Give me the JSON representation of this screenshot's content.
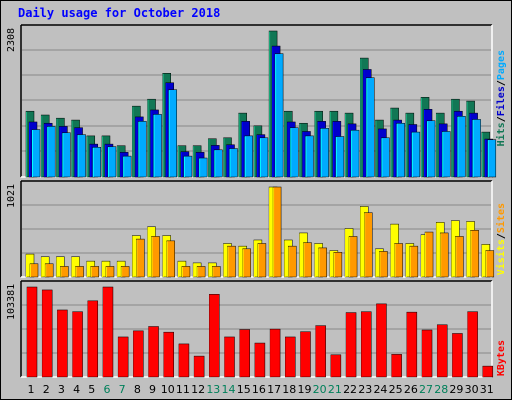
{
  "chart_data": [
    {
      "type": "bar",
      "title": "Daily usage for October 2018",
      "ytick": "2308",
      "legend": [
        {
          "label": "Pages",
          "color": "#00aaff"
        },
        {
          "label": "Files",
          "color": "#0000cc"
        },
        {
          "label": "Hits",
          "color": "#117755"
        }
      ],
      "ylim": [
        0,
        2308
      ],
      "series": [
        {
          "name": "Hits",
          "values": [
            1040,
            980,
            930,
            900,
            650,
            650,
            495,
            1120,
            1230,
            1640,
            495,
            495,
            605,
            620,
            1010,
            810,
            2308,
            1040,
            850,
            1040,
            1040,
            1010,
            1880,
            900,
            1090,
            1010,
            1260,
            1010,
            1230,
            1200,
            710
          ]
        },
        {
          "name": "Files",
          "values": [
            870,
            850,
            800,
            780,
            520,
            520,
            390,
            950,
            1060,
            1490,
            400,
            390,
            500,
            510,
            880,
            670,
            2070,
            870,
            720,
            880,
            880,
            840,
            1700,
            760,
            900,
            830,
            1070,
            840,
            1040,
            1010,
            600
          ]
        },
        {
          "name": "Pages",
          "values": [
            750,
            800,
            700,
            670,
            470,
            480,
            330,
            880,
            990,
            1380,
            330,
            300,
            430,
            450,
            650,
            620,
            1950,
            780,
            650,
            770,
            640,
            740,
            1570,
            620,
            850,
            710,
            890,
            720,
            960,
            910,
            590
          ]
        }
      ]
    },
    {
      "type": "bar",
      "ytick": "1021",
      "legend": [
        {
          "label": "Sites",
          "color": "#ff9900"
        },
        {
          "label": "Visits",
          "color": "#ffff00"
        }
      ],
      "ylim": [
        0,
        1021
      ],
      "series": [
        {
          "name": "Visits",
          "values": [
            260,
            230,
            230,
            230,
            180,
            180,
            180,
            470,
            570,
            470,
            180,
            160,
            160,
            380,
            350,
            420,
            1021,
            420,
            500,
            380,
            300,
            550,
            800,
            320,
            600,
            380,
            480,
            620,
            640,
            630,
            370
          ]
        },
        {
          "name": "Sites",
          "values": [
            150,
            150,
            120,
            120,
            120,
            120,
            120,
            430,
            460,
            410,
            120,
            120,
            120,
            350,
            320,
            380,
            1021,
            350,
            390,
            330,
            280,
            460,
            730,
            290,
            380,
            350,
            510,
            500,
            460,
            530,
            300
          ]
        }
      ]
    },
    {
      "type": "bar",
      "ytick": "103381",
      "legend": [
        {
          "label": "KBytes",
          "color": "#ff0000"
        }
      ],
      "ylim": [
        0,
        103381
      ],
      "series": [
        {
          "name": "KBytes",
          "values": [
            103381,
            100000,
            77000,
            75000,
            87500,
            103381,
            46000,
            53000,
            58000,
            51500,
            38000,
            24000,
            95000,
            46000,
            54500,
            39000,
            55000,
            46000,
            52000,
            59000,
            25500,
            74000,
            75000,
            84000,
            26000,
            74500,
            54000,
            60000,
            50000,
            75000,
            12500
          ]
        }
      ]
    }
  ],
  "days": [
    "1",
    "2",
    "3",
    "4",
    "5",
    "6",
    "7",
    "8",
    "9",
    "10",
    "11",
    "12",
    "13",
    "14",
    "15",
    "16",
    "17",
    "18",
    "19",
    "20",
    "21",
    "22",
    "23",
    "24",
    "25",
    "26",
    "27",
    "28",
    "29",
    "30",
    "31"
  ],
  "weekend_days": [
    "6",
    "7",
    "13",
    "14",
    "20",
    "21",
    "27",
    "28"
  ],
  "colors": {
    "weekday": "#000000",
    "weekend": "#00805a",
    "background": "#c0c0c0",
    "plot": "#c0c0c0",
    "grid": "#888888"
  }
}
